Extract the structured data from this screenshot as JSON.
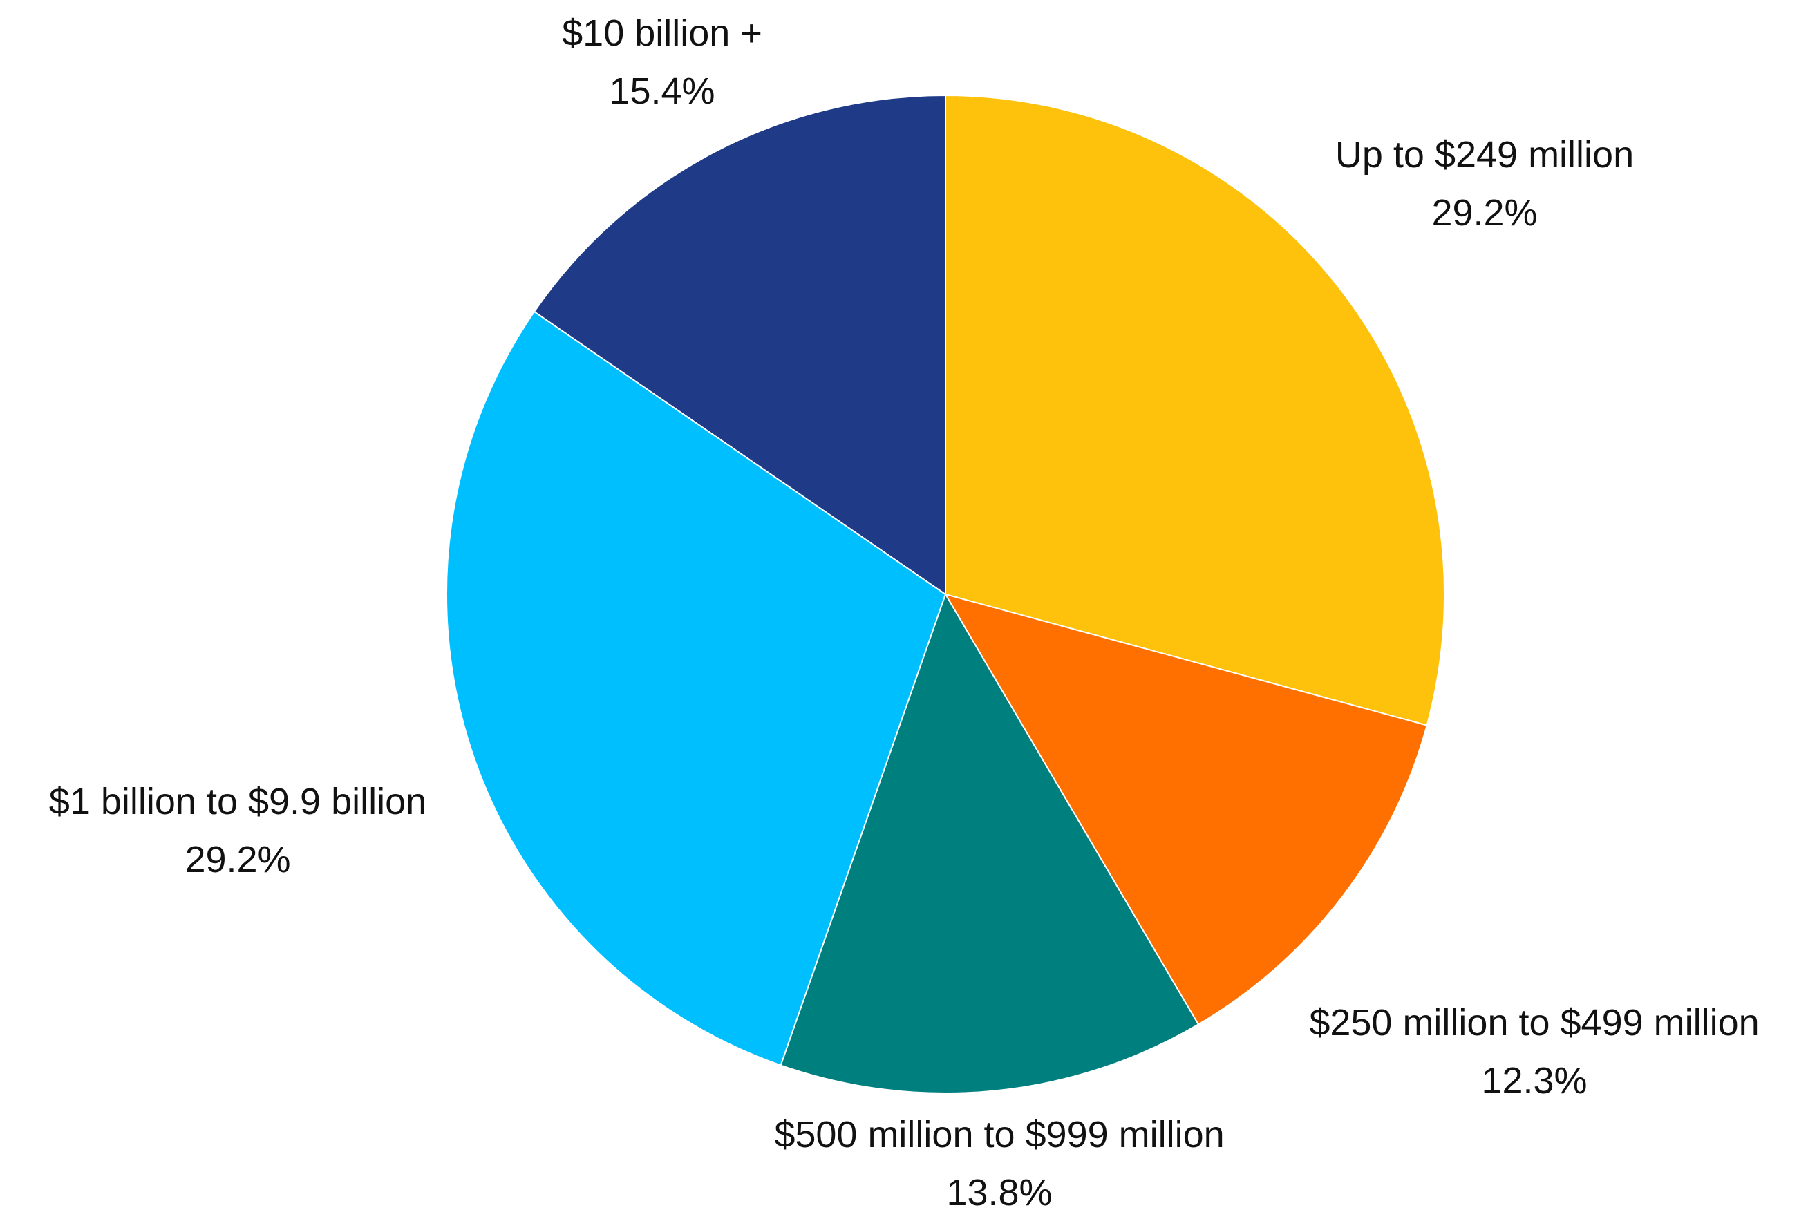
{
  "chart_data": {
    "type": "pie",
    "title": "",
    "slices": [
      {
        "label": "Up to $249 million",
        "value": 29.2,
        "value_label": "29.2%",
        "color": "#FEC20C"
      },
      {
        "label": "$250 million to $499 million",
        "value": 12.3,
        "value_label": "12.3%",
        "color": "#FF7000"
      },
      {
        "label": "$500 million to $999 million",
        "value": 13.8,
        "value_label": "13.8%",
        "color": "#007F7F"
      },
      {
        "label": "$1 billion to $9.9 billion",
        "value": 29.2,
        "value_label": "29.2%",
        "color": "#00BFFF"
      },
      {
        "label": "$10 billion +",
        "value": 15.4,
        "value_label": "15.4%",
        "color": "#1F3A87"
      }
    ],
    "start_angle": "12 o'clock",
    "direction": "clockwise",
    "legend": "none",
    "labels_position": "outside"
  }
}
